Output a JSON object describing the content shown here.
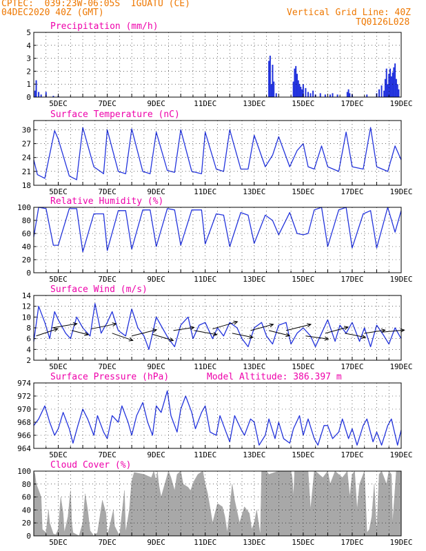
{
  "header": {
    "station": "CPTEC:  039:23W-06:05S  IGUATU (CE)",
    "run": "04DEC2020 40Z (GMT)",
    "grid_note": "Vertical Grid Line: 40Z",
    "code": "TQ0126L028"
  },
  "colors": {
    "header": "#ee7700",
    "title": "#ee00aa",
    "line": "#2233dd",
    "cloud": "#a8a8a8",
    "arrow": "#000000"
  },
  "x_ticks": [
    "5DEC",
    "7DEC",
    "9DEC",
    "11DEC",
    "13DEC",
    "15DEC",
    "17DEC",
    "19DEC"
  ],
  "altitude_label": "Model Altitude: 386.397 m",
  "chart_data": [
    {
      "type": "bar",
      "title": "Precipitation (mm/h)",
      "x_range_days": [
        4.0,
        19.0
      ],
      "ylim": [
        0,
        5
      ],
      "yticks": [
        "0",
        "1",
        "2",
        "3",
        "4",
        "5"
      ],
      "x": [
        4.05,
        4.1,
        4.2,
        4.3,
        4.5,
        4.8,
        5.0,
        13.6,
        13.65,
        13.7,
        13.75,
        13.8,
        13.9,
        14.6,
        14.65,
        14.7,
        14.75,
        14.8,
        14.85,
        14.9,
        14.95,
        15.0,
        15.1,
        15.2,
        15.3,
        15.4,
        15.5,
        15.7,
        15.9,
        16.1,
        16.2,
        16.4,
        16.8,
        16.85,
        16.9,
        17.0,
        17.6,
        18.0,
        18.1,
        18.2,
        18.3,
        18.35,
        18.4,
        18.45,
        18.5,
        18.55,
        18.6,
        18.65,
        18.7,
        18.75,
        18.8,
        18.85,
        18.9
      ],
      "values": [
        0.5,
        1.3,
        0.4,
        0.2,
        0.4,
        0.1,
        0.1,
        2.8,
        3.2,
        1.0,
        2.5,
        1.2,
        0.3,
        1.2,
        2.2,
        2.4,
        1.8,
        1.3,
        1.0,
        0.8,
        0.6,
        1.0,
        0.7,
        0.4,
        0.3,
        0.5,
        0.2,
        0.3,
        0.2,
        0.2,
        0.3,
        0.2,
        0.4,
        0.6,
        0.3,
        0.2,
        0.2,
        0.3,
        0.6,
        0.9,
        0.5,
        1.4,
        2.2,
        1.0,
        1.8,
        2.2,
        1.6,
        1.9,
        2.3,
        2.6,
        1.4,
        1.0,
        0.6
      ]
    },
    {
      "type": "line",
      "title": "Surface Temperature (nC)",
      "x_range_days": [
        4.0,
        19.0
      ],
      "ylim": [
        18,
        32
      ],
      "yticks": [
        "18",
        "21",
        "24",
        "27",
        "30"
      ],
      "x": [
        4.0,
        4.15,
        4.45,
        4.85,
        5.0,
        5.45,
        5.75,
        6.0,
        6.45,
        6.85,
        7.0,
        7.45,
        7.75,
        8.0,
        8.45,
        8.75,
        9.0,
        9.45,
        9.75,
        10.0,
        10.45,
        10.85,
        11.0,
        11.45,
        11.75,
        12.0,
        12.45,
        12.75,
        13.0,
        13.45,
        13.75,
        14.0,
        14.45,
        14.75,
        15.0,
        15.2,
        15.45,
        15.75,
        16.0,
        16.45,
        16.75,
        17.0,
        17.45,
        17.75,
        18.0,
        18.45,
        18.75,
        19.0
      ],
      "values": [
        23.5,
        20.3,
        19.5,
        29.8,
        28.0,
        20.0,
        19.2,
        30.5,
        22.0,
        20.5,
        30.0,
        21.0,
        20.5,
        30.2,
        21.0,
        20.5,
        29.5,
        21.2,
        20.8,
        30.0,
        21.0,
        20.5,
        29.5,
        21.5,
        21.0,
        30.0,
        21.5,
        21.5,
        28.8,
        22.0,
        24.5,
        28.5,
        22.0,
        25.5,
        27.0,
        22.0,
        21.5,
        26.5,
        22.0,
        21.0,
        29.5,
        22.0,
        21.5,
        30.5,
        22.0,
        21.0,
        26.5,
        23.5
      ]
    },
    {
      "type": "line",
      "title": "Relative Humidity (%)",
      "x_range_days": [
        4.0,
        19.0
      ],
      "ylim": [
        0,
        100
      ],
      "yticks": [
        "0",
        "20",
        "40",
        "60",
        "80",
        "100"
      ],
      "x": [
        4.0,
        4.2,
        4.5,
        4.8,
        5.0,
        5.45,
        5.75,
        6.0,
        6.45,
        6.85,
        7.0,
        7.45,
        7.75,
        8.0,
        8.45,
        8.75,
        9.0,
        9.45,
        9.75,
        10.0,
        10.45,
        10.85,
        11.0,
        11.45,
        11.75,
        12.0,
        12.45,
        12.75,
        13.0,
        13.45,
        13.75,
        14.0,
        14.45,
        14.75,
        15.0,
        15.2,
        15.45,
        15.75,
        16.0,
        16.45,
        16.75,
        17.0,
        17.45,
        17.75,
        18.0,
        18.45,
        18.75,
        19.0
      ],
      "values": [
        55,
        100,
        98,
        42,
        42,
        98,
        98,
        32,
        90,
        90,
        34,
        95,
        95,
        36,
        96,
        96,
        40,
        98,
        96,
        42,
        96,
        96,
        44,
        90,
        88,
        40,
        92,
        88,
        45,
        88,
        80,
        58,
        92,
        60,
        58,
        60,
        96,
        100,
        40,
        96,
        100,
        38,
        90,
        95,
        38,
        100,
        62,
        95
      ]
    },
    {
      "type": "line",
      "title": "Surface Wind (m/s)",
      "x_range_days": [
        4.0,
        19.0
      ],
      "ylim": [
        2,
        14
      ],
      "yticks": [
        "2",
        "4",
        "6",
        "8",
        "10",
        "12",
        "14"
      ],
      "x": [
        4.0,
        4.2,
        4.45,
        4.65,
        4.85,
        5.0,
        5.3,
        5.5,
        5.75,
        6.0,
        6.3,
        6.5,
        6.75,
        7.0,
        7.2,
        7.45,
        7.75,
        8.0,
        8.25,
        8.5,
        8.7,
        9.0,
        9.25,
        9.5,
        9.75,
        10.0,
        10.3,
        10.5,
        10.75,
        11.0,
        11.3,
        11.5,
        11.75,
        12.0,
        12.3,
        12.5,
        12.75,
        13.0,
        13.3,
        13.5,
        13.75,
        14.0,
        14.3,
        14.5,
        14.75,
        15.0,
        15.3,
        15.5,
        15.75,
        16.0,
        16.3,
        16.5,
        16.75,
        17.0,
        17.3,
        17.5,
        17.75,
        18.0,
        18.3,
        18.5,
        18.75,
        19.0
      ],
      "values": [
        5.5,
        12.0,
        9.0,
        6.0,
        11.0,
        9.5,
        7.0,
        6.0,
        10.0,
        8.0,
        6.5,
        12.5,
        7.0,
        9.0,
        11.0,
        7.5,
        6.5,
        11.5,
        8.0,
        6.5,
        4.0,
        10.0,
        8.0,
        6.0,
        4.5,
        8.5,
        10.0,
        6.0,
        8.5,
        9.0,
        6.0,
        8.0,
        6.5,
        9.0,
        8.0,
        6.0,
        4.5,
        8.0,
        9.0,
        6.5,
        5.0,
        8.5,
        9.0,
        5.0,
        7.0,
        8.0,
        6.5,
        4.5,
        7.0,
        9.5,
        5.5,
        8.5,
        7.0,
        9.0,
        5.5,
        8.0,
        4.5,
        8.5,
        6.5,
        5.0,
        8.0,
        6.0
      ],
      "arrows": [
        {
          "x": 4.1,
          "v": 6.5,
          "u": 5.2,
          "w": 3.5
        },
        {
          "x": 4.75,
          "v": 8.0,
          "u": 6.0,
          "w": 2.0
        },
        {
          "x": 5.55,
          "v": 7.5,
          "u": 4.0,
          "w": -2.0
        },
        {
          "x": 6.35,
          "v": 7.8,
          "u": 6.0,
          "w": 2.5
        },
        {
          "x": 7.2,
          "v": 7.0,
          "u": 5.0,
          "w": -3.5
        },
        {
          "x": 8.0,
          "v": 6.5,
          "u": 6.0,
          "w": 3.0
        },
        {
          "x": 8.85,
          "v": 6.8,
          "u": 5.0,
          "w": -3.0
        },
        {
          "x": 9.7,
          "v": 7.5,
          "u": 5.0,
          "w": 1.5
        },
        {
          "x": 10.55,
          "v": 7.5,
          "u": 5.5,
          "w": -2.0
        },
        {
          "x": 11.3,
          "v": 7.8,
          "u": 6.0,
          "w": 3.5
        },
        {
          "x": 12.1,
          "v": 7.0,
          "u": 5.0,
          "w": -2.0
        },
        {
          "x": 12.85,
          "v": 7.5,
          "u": 5.5,
          "w": 3.0
        },
        {
          "x": 13.6,
          "v": 7.5,
          "u": 5.0,
          "w": -2.5
        },
        {
          "x": 14.3,
          "v": 7.5,
          "u": 6.0,
          "w": 3.0
        },
        {
          "x": 15.1,
          "v": 6.5,
          "u": 5.5,
          "w": -1.5
        },
        {
          "x": 15.9,
          "v": 7.0,
          "u": 5.5,
          "w": 3.0
        },
        {
          "x": 16.7,
          "v": 7.0,
          "u": 5.0,
          "w": -2.0
        },
        {
          "x": 17.5,
          "v": 7.0,
          "u": 5.0,
          "w": 1.5
        },
        {
          "x": 18.2,
          "v": 7.2,
          "u": 5.5,
          "w": 1.0
        }
      ]
    },
    {
      "type": "line",
      "title": "Surface Pressure (hPa)",
      "x_range_days": [
        4.0,
        19.0
      ],
      "ylim": [
        964,
        974
      ],
      "yticks": [
        "964",
        "966",
        "968",
        "970",
        "972",
        "974"
      ],
      "x": [
        4.0,
        4.2,
        4.45,
        4.65,
        4.85,
        5.0,
        5.2,
        5.45,
        5.6,
        5.8,
        6.0,
        6.2,
        6.45,
        6.6,
        6.85,
        7.0,
        7.2,
        7.45,
        7.6,
        7.85,
        8.0,
        8.2,
        8.45,
        8.65,
        8.85,
        9.0,
        9.2,
        9.45,
        9.6,
        9.85,
        10.0,
        10.2,
        10.45,
        10.6,
        10.85,
        11.0,
        11.2,
        11.45,
        11.6,
        11.85,
        12.0,
        12.2,
        12.45,
        12.6,
        12.85,
        13.0,
        13.2,
        13.45,
        13.6,
        13.85,
        14.0,
        14.2,
        14.45,
        14.6,
        14.85,
        15.0,
        15.2,
        15.45,
        15.6,
        15.85,
        16.0,
        16.2,
        16.45,
        16.6,
        16.85,
        17.0,
        17.2,
        17.45,
        17.6,
        17.85,
        18.0,
        18.2,
        18.45,
        18.6,
        18.85,
        19.0
      ],
      "values": [
        967.5,
        968.5,
        970.5,
        968.0,
        966.0,
        967.0,
        969.5,
        967.0,
        964.8,
        967.5,
        970.0,
        968.5,
        966.0,
        969.0,
        966.5,
        965.5,
        969.0,
        968.0,
        970.5,
        968.0,
        966.0,
        969.0,
        971.0,
        968.0,
        966.0,
        970.5,
        969.5,
        972.8,
        969.0,
        966.5,
        970.0,
        972.0,
        969.5,
        967.0,
        969.5,
        970.5,
        966.5,
        966.0,
        969.0,
        966.5,
        965.0,
        969.0,
        967.0,
        966.0,
        968.5,
        968.0,
        964.5,
        966.0,
        968.5,
        965.5,
        968.0,
        965.5,
        964.8,
        967.0,
        969.0,
        966.0,
        968.5,
        965.5,
        964.5,
        967.5,
        967.5,
        965.5,
        966.5,
        968.5,
        965.5,
        967.0,
        964.5,
        967.5,
        968.5,
        965.0,
        966.5,
        964.5,
        967.5,
        968.5,
        964.5,
        966.8
      ]
    },
    {
      "type": "area",
      "title": "Cloud Cover (%)",
      "x_range_days": [
        4.0,
        19.0
      ],
      "ylim": [
        0,
        100
      ],
      "yticks": [
        "0",
        "20",
        "40",
        "60",
        "80",
        "100"
      ],
      "x": [
        4.0,
        4.05,
        4.1,
        4.3,
        4.35,
        4.5,
        4.6,
        4.65,
        4.8,
        4.9,
        5.0,
        5.1,
        5.2,
        5.25,
        5.4,
        5.5,
        5.55,
        5.6,
        5.75,
        5.85,
        6.0,
        6.1,
        6.2,
        6.3,
        6.4,
        6.45,
        6.6,
        6.8,
        6.95,
        7.0,
        7.1,
        7.25,
        7.3,
        7.5,
        7.7,
        7.75,
        7.9,
        8.0,
        8.1,
        8.5,
        8.8,
        8.9,
        8.95,
        9.0,
        9.05,
        9.1,
        9.2,
        9.5,
        9.6,
        9.75,
        9.85,
        10.0,
        10.1,
        10.3,
        10.4,
        10.55,
        10.7,
        10.9,
        11.0,
        11.1,
        11.3,
        11.5,
        11.7,
        11.8,
        11.9,
        12.0,
        12.1,
        12.2,
        12.4,
        12.6,
        12.8,
        12.9,
        13.0,
        13.1,
        13.25,
        13.3,
        13.35,
        13.5,
        13.6,
        14.0,
        14.5,
        14.55,
        14.6,
        14.65,
        15.0,
        15.2,
        15.3,
        15.45,
        15.5,
        15.8,
        16.0,
        16.1,
        16.3,
        16.6,
        16.7,
        16.8,
        16.9,
        17.0,
        17.1,
        17.2,
        17.3,
        17.5,
        17.6,
        17.7,
        17.8,
        17.9,
        18.0,
        18.1,
        18.2,
        18.4,
        18.5,
        18.6,
        18.65,
        18.8,
        18.9,
        19.0
      ],
      "values": [
        100,
        95,
        80,
        60,
        10,
        5,
        40,
        20,
        3,
        2,
        10,
        60,
        35,
        5,
        30,
        70,
        20,
        5,
        2,
        0,
        20,
        65,
        40,
        8,
        3,
        0,
        5,
        55,
        35,
        0,
        15,
        40,
        15,
        0,
        70,
        5,
        40,
        85,
        98,
        95,
        90,
        100,
        92,
        85,
        100,
        80,
        60,
        100,
        90,
        70,
        95,
        100,
        80,
        75,
        70,
        85,
        95,
        100,
        80,
        65,
        20,
        50,
        45,
        30,
        5,
        40,
        80,
        55,
        20,
        45,
        35,
        10,
        20,
        40,
        0,
        100,
        100,
        100,
        95,
        100,
        100,
        90,
        60,
        100,
        100,
        100,
        40,
        100,
        100,
        90,
        100,
        80,
        100,
        90,
        95,
        100,
        60,
        95,
        100,
        40,
        80,
        100,
        5,
        10,
        30,
        80,
        5,
        95,
        100,
        80,
        100,
        95,
        20,
        100,
        100,
        100
      ]
    }
  ]
}
